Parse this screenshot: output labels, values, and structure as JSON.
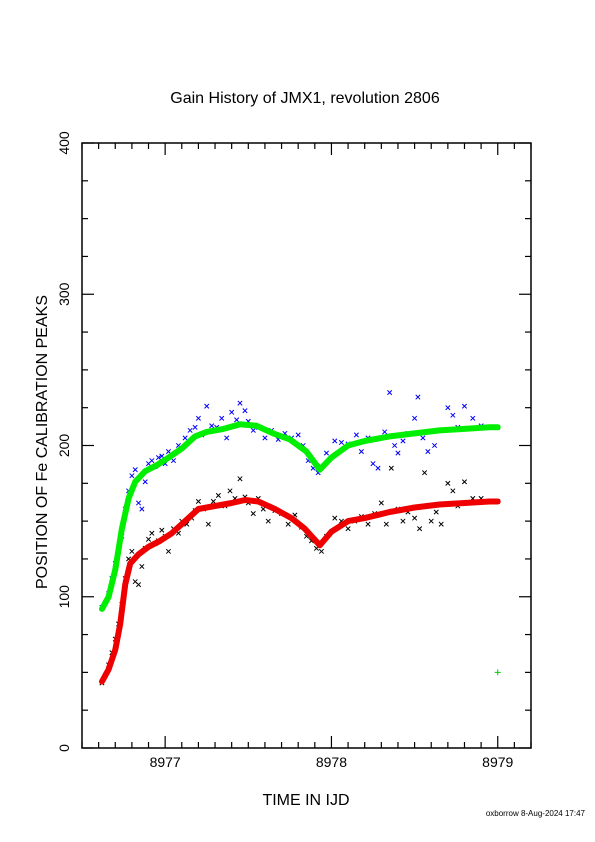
{
  "chart_data": {
    "type": "scatter",
    "title": "Gain History of JMX1, revolution 2806",
    "xlabel": "TIME IN IJD",
    "ylabel": "POSITION OF Fe CALIBRATION PEAKS",
    "xlim": [
      8976.5,
      8979.2
    ],
    "ylim": [
      0,
      400
    ],
    "x_ticks": [
      8977,
      8978,
      8979
    ],
    "y_ticks": [
      0,
      100,
      200,
      300,
      400
    ],
    "grid": false,
    "legend": "none",
    "series": [
      {
        "marker": "x",
        "color": "#0000ff",
        "points": [
          [
            8976.62,
            93
          ],
          [
            8976.64,
            96
          ],
          [
            8976.66,
            102
          ],
          [
            8976.68,
            112
          ],
          [
            8976.7,
            122
          ],
          [
            8976.72,
            130
          ],
          [
            8976.74,
            140
          ],
          [
            8976.76,
            158
          ],
          [
            8976.78,
            170
          ],
          [
            8976.8,
            180
          ],
          [
            8976.82,
            184
          ],
          [
            8976.84,
            162
          ],
          [
            8976.86,
            158
          ],
          [
            8976.88,
            176
          ],
          [
            8976.9,
            188
          ],
          [
            8976.92,
            190
          ],
          [
            8976.94,
            186
          ],
          [
            8976.96,
            192
          ],
          [
            8976.98,
            193
          ],
          [
            8977.0,
            188
          ],
          [
            8977.02,
            196
          ],
          [
            8977.05,
            190
          ],
          [
            8977.08,
            200
          ],
          [
            8977.12,
            205
          ],
          [
            8977.15,
            210
          ],
          [
            8977.18,
            212
          ],
          [
            8977.2,
            218
          ],
          [
            8977.22,
            207
          ],
          [
            8977.25,
            226
          ],
          [
            8977.28,
            213
          ],
          [
            8977.31,
            212
          ],
          [
            8977.34,
            218
          ],
          [
            8977.37,
            205
          ],
          [
            8977.4,
            222
          ],
          [
            8977.43,
            217
          ],
          [
            8977.45,
            228
          ],
          [
            8977.48,
            223
          ],
          [
            8977.5,
            216
          ],
          [
            8977.53,
            210
          ],
          [
            8977.56,
            212
          ],
          [
            8977.6,
            205
          ],
          [
            8977.64,
            210
          ],
          [
            8977.68,
            204
          ],
          [
            8977.72,
            208
          ],
          [
            8977.76,
            205
          ],
          [
            8977.8,
            207
          ],
          [
            8977.83,
            200
          ],
          [
            8977.86,
            190
          ],
          [
            8977.89,
            185
          ],
          [
            8977.92,
            182
          ],
          [
            8977.94,
            186
          ],
          [
            8977.97,
            195
          ],
          [
            8978.02,
            203
          ],
          [
            8978.06,
            202
          ],
          [
            8978.1,
            201
          ],
          [
            8978.15,
            207
          ],
          [
            8978.18,
            196
          ],
          [
            8978.22,
            205
          ],
          [
            8978.25,
            188
          ],
          [
            8978.28,
            185
          ],
          [
            8978.32,
            209
          ],
          [
            8978.35,
            235
          ],
          [
            8978.38,
            200
          ],
          [
            8978.4,
            195
          ],
          [
            8978.43,
            203
          ],
          [
            8978.46,
            208
          ],
          [
            8978.5,
            218
          ],
          [
            8978.52,
            232
          ],
          [
            8978.55,
            205
          ],
          [
            8978.58,
            196
          ],
          [
            8978.62,
            200
          ],
          [
            8978.66,
            210
          ],
          [
            8978.7,
            225
          ],
          [
            8978.73,
            220
          ],
          [
            8978.76,
            212
          ],
          [
            8978.8,
            226
          ],
          [
            8978.85,
            218
          ],
          [
            8978.9,
            213
          ],
          [
            8979.0,
            212
          ]
        ]
      },
      {
        "marker": "x",
        "color": "#000000",
        "points": [
          [
            8976.62,
            43
          ],
          [
            8976.64,
            48
          ],
          [
            8976.66,
            55
          ],
          [
            8976.68,
            63
          ],
          [
            8976.7,
            72
          ],
          [
            8976.72,
            82
          ],
          [
            8976.74,
            95
          ],
          [
            8976.76,
            112
          ],
          [
            8976.78,
            125
          ],
          [
            8976.8,
            130
          ],
          [
            8976.82,
            110
          ],
          [
            8976.84,
            108
          ],
          [
            8976.86,
            120
          ],
          [
            8976.88,
            132
          ],
          [
            8976.9,
            138
          ],
          [
            8976.92,
            142
          ],
          [
            8976.94,
            135
          ],
          [
            8976.96,
            137
          ],
          [
            8976.98,
            144
          ],
          [
            8977.0,
            140
          ],
          [
            8977.02,
            130
          ],
          [
            8977.05,
            145
          ],
          [
            8977.08,
            142
          ],
          [
            8977.1,
            150
          ],
          [
            8977.13,
            148
          ],
          [
            8977.16,
            152
          ],
          [
            8977.18,
            157
          ],
          [
            8977.2,
            163
          ],
          [
            8977.23,
            158
          ],
          [
            8977.26,
            148
          ],
          [
            8977.29,
            163
          ],
          [
            8977.32,
            167
          ],
          [
            8977.36,
            160
          ],
          [
            8977.39,
            170
          ],
          [
            8977.42,
            165
          ],
          [
            8977.45,
            178
          ],
          [
            8977.48,
            166
          ],
          [
            8977.5,
            162
          ],
          [
            8977.53,
            155
          ],
          [
            8977.56,
            165
          ],
          [
            8977.59,
            158
          ],
          [
            8977.62,
            150
          ],
          [
            8977.66,
            157
          ],
          [
            8977.7,
            155
          ],
          [
            8977.74,
            148
          ],
          [
            8977.78,
            154
          ],
          [
            8977.82,
            146
          ],
          [
            8977.85,
            140
          ],
          [
            8977.88,
            137
          ],
          [
            8977.91,
            132
          ],
          [
            8977.94,
            130
          ],
          [
            8977.97,
            140
          ],
          [
            8978.02,
            152
          ],
          [
            8978.06,
            150
          ],
          [
            8978.1,
            145
          ],
          [
            8978.14,
            150
          ],
          [
            8978.18,
            153
          ],
          [
            8978.22,
            148
          ],
          [
            8978.26,
            155
          ],
          [
            8978.3,
            162
          ],
          [
            8978.33,
            148
          ],
          [
            8978.36,
            185
          ],
          [
            8978.4,
            158
          ],
          [
            8978.43,
            150
          ],
          [
            8978.46,
            156
          ],
          [
            8978.5,
            152
          ],
          [
            8978.53,
            145
          ],
          [
            8978.56,
            182
          ],
          [
            8978.6,
            150
          ],
          [
            8978.63,
            156
          ],
          [
            8978.66,
            148
          ],
          [
            8978.7,
            175
          ],
          [
            8978.73,
            170
          ],
          [
            8978.76,
            160
          ],
          [
            8978.8,
            176
          ],
          [
            8978.85,
            165
          ],
          [
            8978.9,
            165
          ],
          [
            8979.0,
            163
          ]
        ]
      },
      {
        "marker": "line",
        "color": "#00ee00",
        "points": [
          [
            8976.62,
            92
          ],
          [
            8976.66,
            100
          ],
          [
            8976.7,
            118
          ],
          [
            8976.74,
            145
          ],
          [
            8976.78,
            165
          ],
          [
            8976.82,
            176
          ],
          [
            8976.88,
            183
          ],
          [
            8976.95,
            187
          ],
          [
            8977.02,
            192
          ],
          [
            8977.1,
            198
          ],
          [
            8977.18,
            206
          ],
          [
            8977.25,
            209
          ],
          [
            8977.35,
            211
          ],
          [
            8977.45,
            214
          ],
          [
            8977.55,
            213
          ],
          [
            8977.65,
            208
          ],
          [
            8977.75,
            204
          ],
          [
            8977.85,
            196
          ],
          [
            8977.93,
            184
          ],
          [
            8978.0,
            192
          ],
          [
            8978.1,
            200
          ],
          [
            8978.2,
            203
          ],
          [
            8978.35,
            206
          ],
          [
            8978.5,
            208
          ],
          [
            8978.65,
            210
          ],
          [
            8978.8,
            211
          ],
          [
            8978.95,
            212
          ],
          [
            8979.0,
            212
          ]
        ]
      },
      {
        "marker": "line",
        "color": "#ee0000",
        "points": [
          [
            8976.62,
            44
          ],
          [
            8976.66,
            52
          ],
          [
            8976.7,
            65
          ],
          [
            8976.73,
            82
          ],
          [
            8976.76,
            108
          ],
          [
            8976.79,
            122
          ],
          [
            8976.84,
            128
          ],
          [
            8976.9,
            133
          ],
          [
            8976.97,
            137
          ],
          [
            8977.04,
            142
          ],
          [
            8977.12,
            150
          ],
          [
            8977.2,
            158
          ],
          [
            8977.3,
            160
          ],
          [
            8977.4,
            162
          ],
          [
            8977.48,
            164
          ],
          [
            8977.56,
            163
          ],
          [
            8977.66,
            158
          ],
          [
            8977.76,
            152
          ],
          [
            8977.84,
            145
          ],
          [
            8977.93,
            134
          ],
          [
            8978.0,
            143
          ],
          [
            8978.1,
            150
          ],
          [
            8978.2,
            152
          ],
          [
            8978.35,
            156
          ],
          [
            8978.5,
            159
          ],
          [
            8978.65,
            161
          ],
          [
            8978.8,
            162
          ],
          [
            8978.95,
            163
          ],
          [
            8979.0,
            163
          ]
        ]
      },
      {
        "marker": "+",
        "color": "#00cc00",
        "points": [
          [
            8979.0,
            50
          ]
        ]
      }
    ]
  },
  "footer": {
    "stamp": "oxborrow  8-Aug-2024 17:47"
  }
}
